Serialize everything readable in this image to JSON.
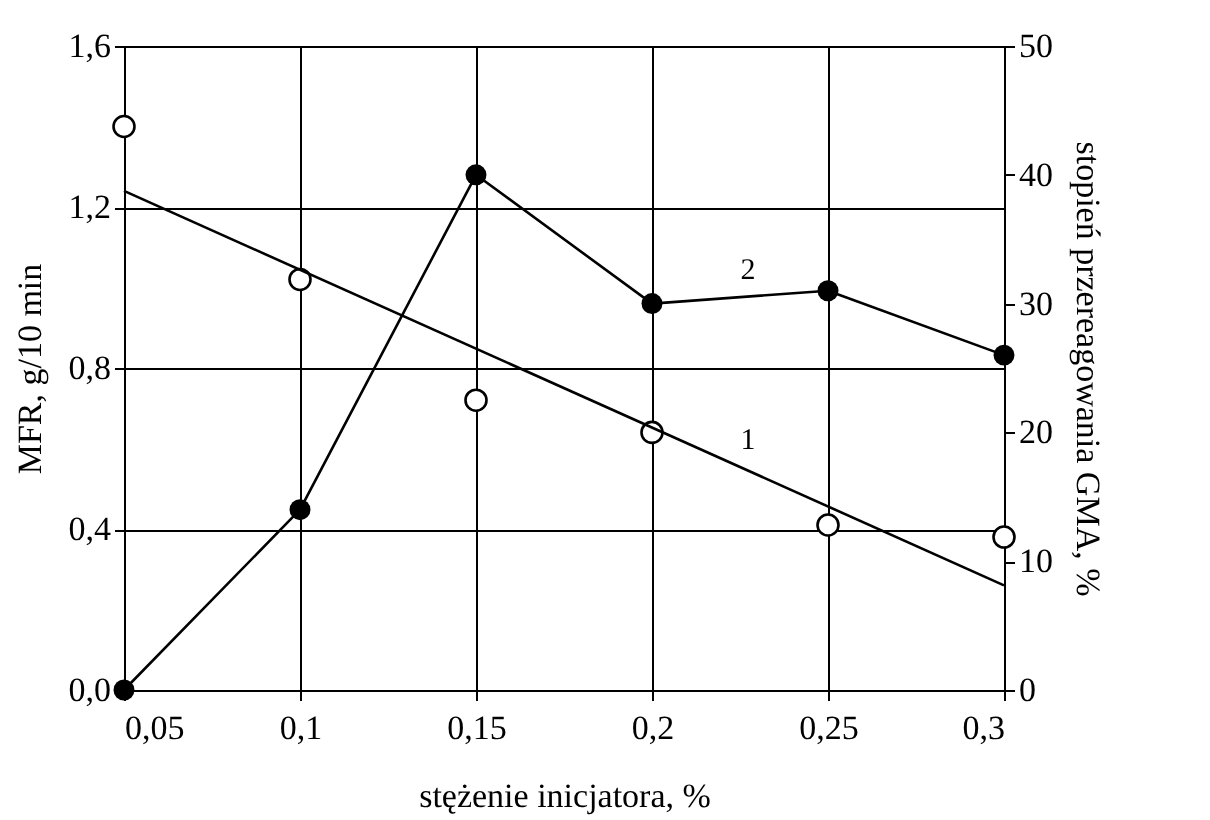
{
  "chart_data": {
    "type": "scatter",
    "xlabel": "stężenie inicjatora, %",
    "ylabel": "MFR, g/10 min",
    "y2label": "stopień przereagowania GMA, %",
    "x": [
      0.05,
      0.1,
      0.15,
      0.2,
      0.25,
      0.3
    ],
    "series": [
      {
        "color": "#000000",
        "values": [
          1.4,
          1.02,
          0.72,
          0.64,
          0.41,
          0.38
        ]
      },
      {
        "type": "line",
        "name": "1",
        "color": "#000000",
        "x": [
          0.05,
          0.3
        ],
        "values": [
          1.24,
          0.26
        ],
        "marker": "none",
        "line_style": "solid"
      },
      {
        "type": "line",
        "name": "2",
        "color": "#000000",
        "axis": "y2",
        "marker": "circle",
        "line_style": "solid",
        "values": [
          0,
          14,
          40,
          30,
          31,
          26
        ]
      }
    ],
    "xlim": [
      0.05,
      0.3
    ],
    "xticks": [
      {
        "value": 0.05,
        "label": "0,05"
      },
      {
        "value": 0.1,
        "label": "0,1"
      },
      {
        "value": 0.15,
        "label": "0,15"
      },
      {
        "value": 0.2,
        "label": "0,2"
      },
      {
        "value": 0.25,
        "label": "0,25"
      },
      {
        "value": 0.3,
        "label": "0,3"
      }
    ],
    "ylim": [
      0,
      1.6
    ],
    "yticks": [
      {
        "value": 0,
        "label": "0,0"
      },
      {
        "value": 0.4,
        "label": "0,4"
      },
      {
        "value": 0.8,
        "label": "0,8"
      },
      {
        "value": 1.2,
        "label": "1,2"
      },
      {
        "value": 1.6,
        "label": "1,6"
      }
    ],
    "y2lim": [
      0,
      50
    ],
    "y2ticks": [
      0,
      10,
      20,
      30,
      40,
      50
    ],
    "grid": true
  }
}
